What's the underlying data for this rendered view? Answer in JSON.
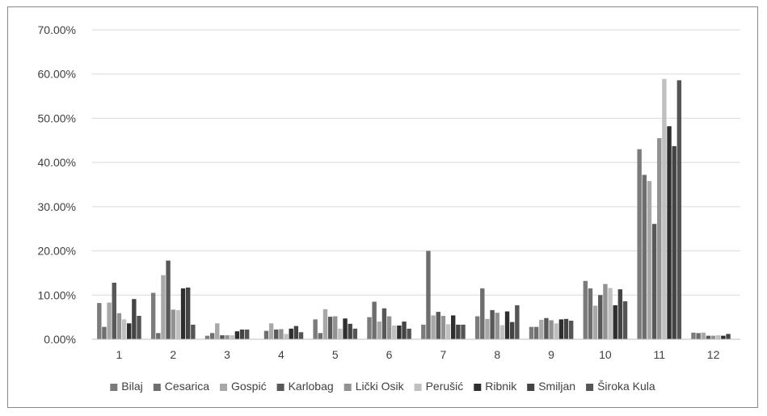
{
  "chart_data": {
    "type": "bar",
    "categories": [
      "1",
      "2",
      "3",
      "4",
      "5",
      "6",
      "7",
      "8",
      "9",
      "10",
      "11",
      "12"
    ],
    "ylim": [
      0,
      70
    ],
    "yticks": [
      "0.00%",
      "10.00%",
      "20.00%",
      "30.00%",
      "40.00%",
      "50.00%",
      "60.00%",
      "70.00%"
    ],
    "ytick_values": [
      0,
      10,
      20,
      30,
      40,
      50,
      60,
      70
    ],
    "grid": true,
    "legend_position": "bottom",
    "series": [
      {
        "name": "Bilaj",
        "color": "#7b7b7b",
        "values": [
          8.2,
          10.5,
          0.8,
          0.0,
          4.5,
          5.0,
          3.3,
          5.2,
          2.8,
          13.2,
          43.0,
          1.5
        ]
      },
      {
        "name": "Cesarica",
        "color": "#6e6e6e",
        "values": [
          2.8,
          1.4,
          1.4,
          1.9,
          1.4,
          8.5,
          20.0,
          11.5,
          2.8,
          11.5,
          37.2,
          1.4
        ]
      },
      {
        "name": "Gospić",
        "color": "#a8a8a8",
        "values": [
          8.3,
          14.5,
          3.6,
          3.6,
          6.8,
          4.0,
          5.4,
          4.6,
          4.4,
          7.6,
          35.8,
          1.5
        ]
      },
      {
        "name": "Karlobag",
        "color": "#585858",
        "values": [
          12.8,
          17.8,
          0.9,
          2.2,
          5.1,
          7.0,
          6.2,
          6.6,
          4.8,
          10.0,
          26.1,
          0.8
        ]
      },
      {
        "name": "Lički Osik",
        "color": "#929292",
        "values": [
          5.9,
          6.7,
          0.9,
          2.3,
          5.2,
          5.2,
          5.3,
          6.0,
          4.3,
          12.5,
          45.5,
          0.8
        ]
      },
      {
        "name": "Perušić",
        "color": "#c0c0c0",
        "values": [
          4.5,
          6.6,
          0.9,
          1.2,
          2.4,
          3.1,
          3.4,
          3.2,
          3.6,
          11.6,
          58.9,
          0.9
        ]
      },
      {
        "name": "Ribnik",
        "color": "#2e2e2e",
        "values": [
          3.6,
          11.5,
          1.8,
          2.4,
          4.7,
          3.1,
          5.4,
          6.3,
          4.5,
          7.7,
          48.2,
          0.8
        ]
      },
      {
        "name": "Smiljan",
        "color": "#444444",
        "values": [
          9.1,
          11.7,
          2.2,
          3.0,
          3.5,
          4.0,
          3.3,
          3.9,
          4.6,
          11.3,
          43.7,
          1.2
        ]
      },
      {
        "name": "Široka Kula",
        "color": "#555555",
        "values": [
          5.3,
          3.3,
          2.2,
          1.6,
          2.4,
          2.4,
          3.3,
          7.7,
          4.2,
          8.6,
          58.6,
          0.0
        ]
      }
    ]
  }
}
